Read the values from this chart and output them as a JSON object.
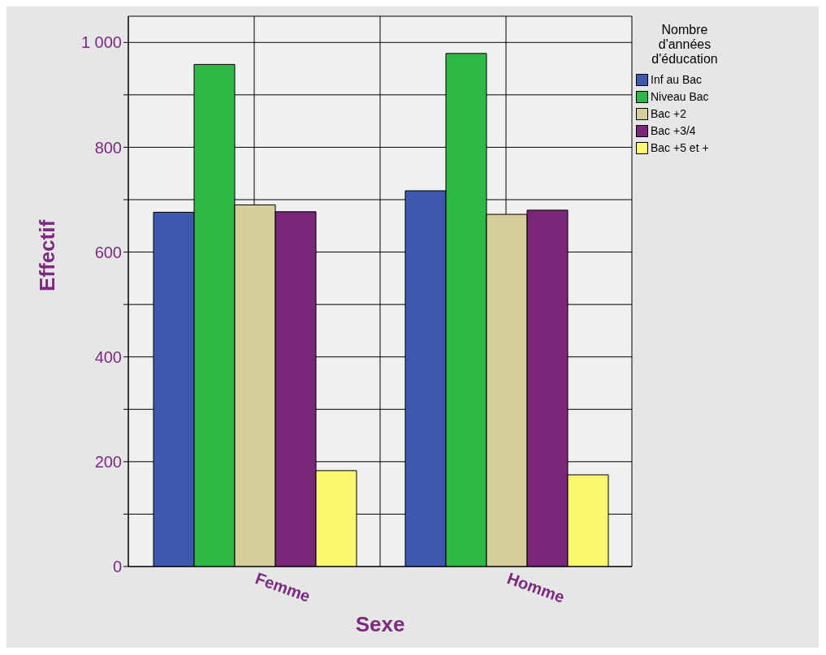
{
  "chart_data": {
    "type": "bar",
    "xlabel": "Sexe",
    "ylabel": "Effectif",
    "legend_title": "Nombre d'années d'éducation",
    "categories": [
      "Femme",
      "Homme"
    ],
    "series": [
      {
        "name": "Inf au Bac",
        "color": "#3d5aae",
        "values": [
          676,
          717
        ]
      },
      {
        "name": "Niveau Bac",
        "color": "#2eb846",
        "values": [
          958,
          979
        ]
      },
      {
        "name": "Bac +2",
        "color": "#d4cf98",
        "values": [
          690,
          672
        ]
      },
      {
        "name": "Bac +3/4",
        "color": "#7b2678",
        "values": [
          677,
          680
        ]
      },
      {
        "name": "Bac +5 et +",
        "color": "#fbf76f",
        "values": [
          183,
          175
        ]
      }
    ],
    "ylim": [
      0,
      1050
    ],
    "yticks": [
      0,
      {
        "value": 100,
        "label": null
      },
      200,
      {
        "value": 300,
        "label": null
      },
      400,
      {
        "value": 500,
        "label": null
      },
      600,
      {
        "value": 700,
        "label": null
      },
      800,
      {
        "value": 900,
        "label": null
      },
      {
        "value": 1000,
        "label": "1 000"
      }
    ],
    "grid": true,
    "legend": "top right"
  }
}
